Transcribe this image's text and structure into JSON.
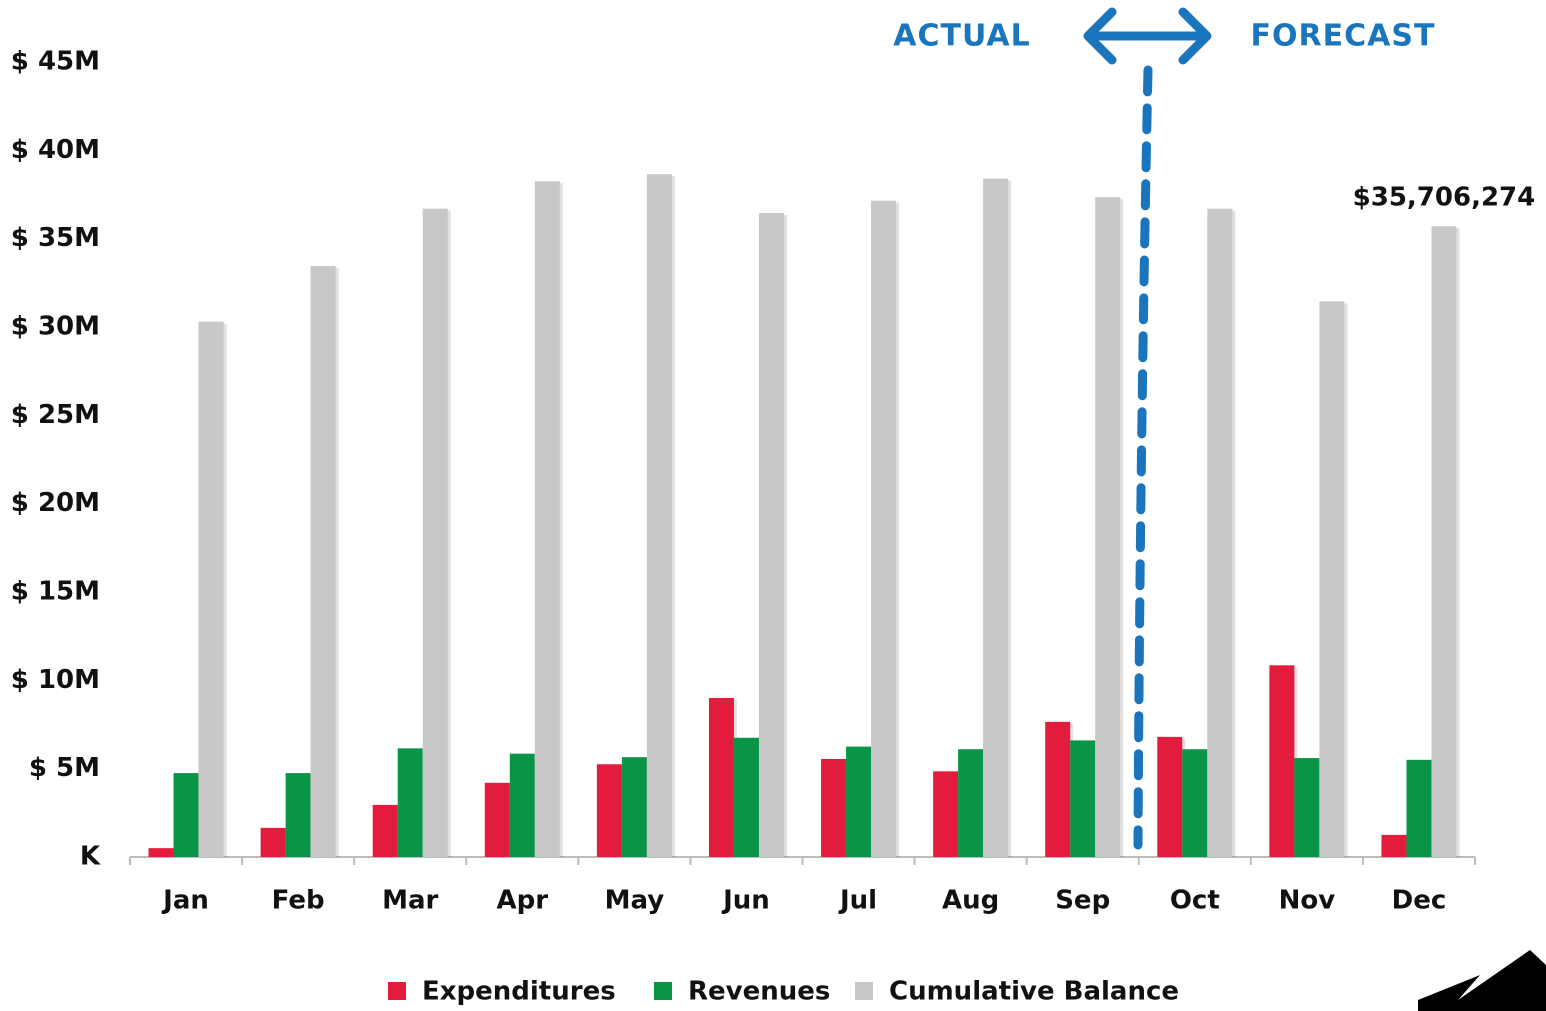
{
  "chart_data": {
    "type": "bar",
    "annotations": [
      "ACTUAL",
      "FORECAST"
    ],
    "categories": [
      "Jan",
      "Feb",
      "Mar",
      "Apr",
      "May",
      "Jun",
      "Jul",
      "Aug",
      "Sep",
      "Oct",
      "Nov",
      "Dec"
    ],
    "series": [
      {
        "name": "Expenditures",
        "color": "#e31c3d",
        "values": [
          500000,
          1650000,
          2950000,
          4200000,
          5250000,
          9000000,
          5550000,
          4850000,
          7650000,
          6800000,
          10850000,
          1250000
        ]
      },
      {
        "name": "Revenues",
        "color": "#0a9447",
        "values": [
          4750000,
          4750000,
          6150000,
          5850000,
          5650000,
          6750000,
          6250000,
          6100000,
          6600000,
          6100000,
          5600000,
          5500000
        ]
      },
      {
        "name": "Cumulative Balance",
        "color": "#c8c8c8",
        "values": [
          30300000,
          33450000,
          36700000,
          38250000,
          38650000,
          36450000,
          37150000,
          38400000,
          37350000,
          36700000,
          31450000,
          35706274
        ],
        "value_labels": [
          null,
          null,
          null,
          null,
          null,
          null,
          null,
          null,
          null,
          null,
          null,
          "$35,706,274"
        ]
      }
    ],
    "ylim": [
      0,
      45000000
    ],
    "yticks": [
      {
        "value": 0,
        "label": "K"
      },
      {
        "value": 5000000,
        "label": "$ 5M"
      },
      {
        "value": 10000000,
        "label": "$ 10M"
      },
      {
        "value": 15000000,
        "label": "$ 15M"
      },
      {
        "value": 20000000,
        "label": "$ 20M"
      },
      {
        "value": 25000000,
        "label": "$ 25M"
      },
      {
        "value": 30000000,
        "label": "$ 30M"
      },
      {
        "value": 35000000,
        "label": "$ 35M"
      },
      {
        "value": 40000000,
        "label": "$ 40M"
      },
      {
        "value": 45000000,
        "label": "$ 45M"
      }
    ],
    "grid": false,
    "legend": "bottom"
  }
}
